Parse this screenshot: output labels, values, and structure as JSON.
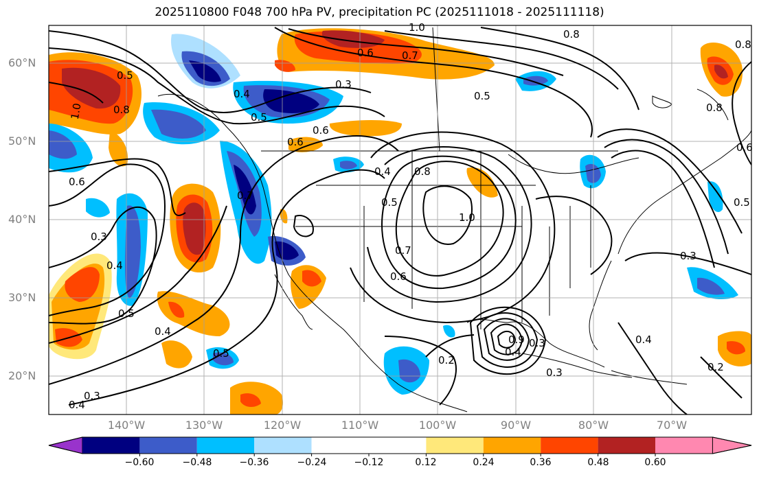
{
  "title": "2025110800 F048 700 hPa PV, precipitation PC (2025111018 - 2025111118)",
  "lat_labels": [
    "60°N",
    "50°N",
    "40°N",
    "30°N",
    "20°N"
  ],
  "lon_labels": [
    "140°W",
    "130°W",
    "120°W",
    "110°W",
    "100°W",
    "90°W",
    "80°W",
    "70°W"
  ],
  "colorbar": {
    "labels": [
      "−0.60",
      "−0.48",
      "−0.36",
      "−0.24",
      "−0.12",
      "0.12",
      "0.24",
      "0.36",
      "0.48",
      "0.60"
    ],
    "colors": [
      "#9933cc",
      "#000080",
      "#3d5cc9",
      "#00bfff",
      "#aee0ff",
      "#ffffff",
      "#ffe87a",
      "#ffa500",
      "#ff4500",
      "#b22222",
      "#ff88b0"
    ]
  },
  "contour_labels": [
    "1.0",
    "0.6",
    "0.7",
    "0.5",
    "0.8",
    "0.3",
    "0.4",
    "0.2",
    "0.9"
  ]
}
